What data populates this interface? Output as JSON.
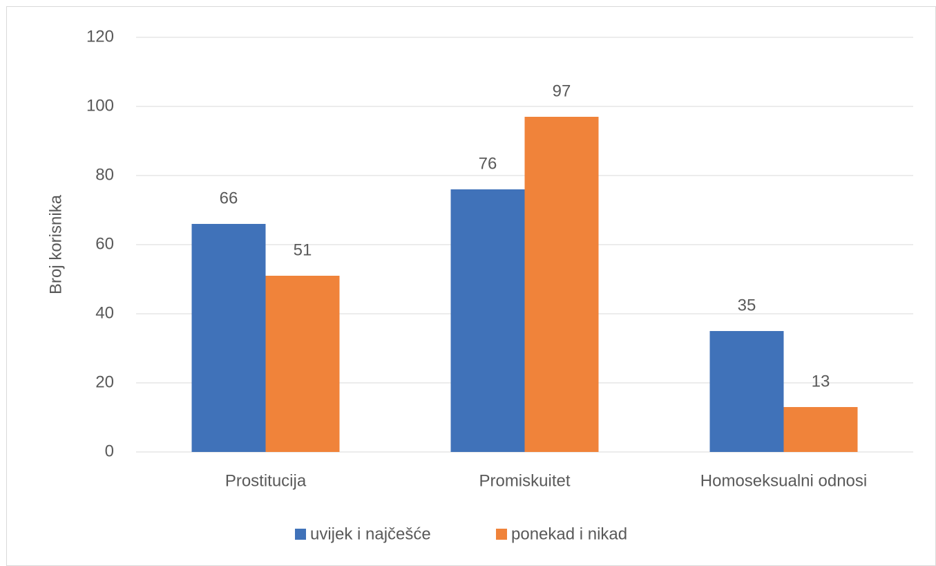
{
  "chart_data": {
    "type": "bar",
    "categories": [
      "Prostitucija",
      "Promiskuitet",
      "Homoseksualni odnosi"
    ],
    "series": [
      {
        "name": "uvijek i najčešće",
        "color": "#4072b9",
        "values": [
          66,
          76,
          35
        ]
      },
      {
        "name": "ponekad i nikad",
        "color": "#f0833a",
        "values": [
          51,
          97,
          13
        ]
      }
    ],
    "y_label": "Broj korisnika",
    "ylim": [
      0,
      120
    ],
    "yticks": [
      0,
      20,
      40,
      60,
      80,
      100,
      120
    ],
    "grid": true,
    "legend": "bottom",
    "data_labels": true
  }
}
